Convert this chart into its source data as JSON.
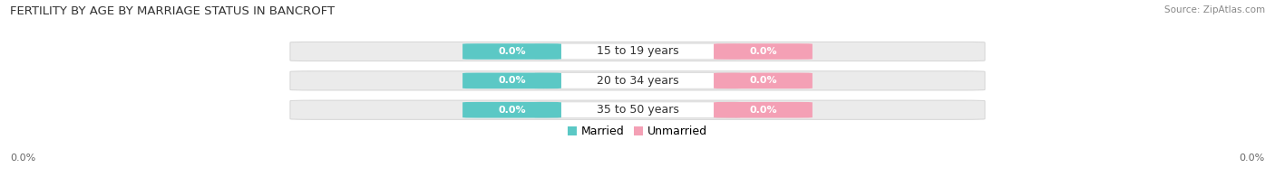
{
  "title": "FERTILITY BY AGE BY MARRIAGE STATUS IN BANCROFT",
  "source": "Source: ZipAtlas.com",
  "categories": [
    "15 to 19 years",
    "20 to 34 years",
    "35 to 50 years"
  ],
  "married_values": [
    0.0,
    0.0,
    0.0
  ],
  "unmarried_values": [
    0.0,
    0.0,
    0.0
  ],
  "married_color": "#5BC8C5",
  "unmarried_color": "#F4A0B5",
  "bar_bg_color": "#EBEBEB",
  "bar_bg_edge_color": "#D5D5D5",
  "center_label_bg": "#FFFFFF",
  "background_color": "#FFFFFF",
  "title_fontsize": 9.5,
  "source_fontsize": 7.5,
  "label_fontsize": 9,
  "value_fontsize": 8,
  "legend_fontsize": 9,
  "x_left_label": "0.0%",
  "x_right_label": "0.0%"
}
